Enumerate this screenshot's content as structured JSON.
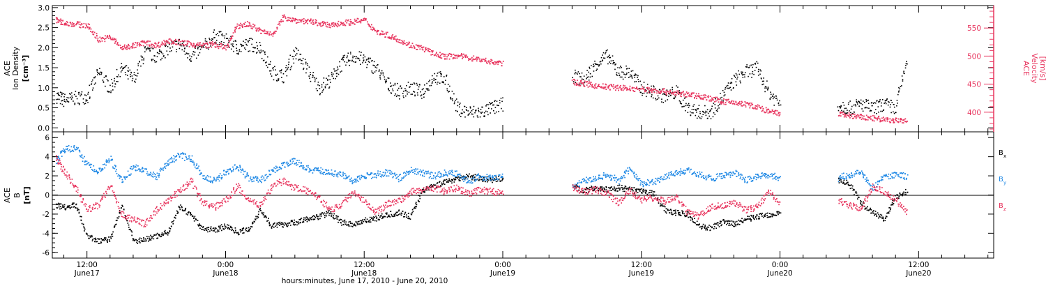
{
  "chart_data": [
    {
      "type": "scatter",
      "panel": "density_velocity",
      "left_axis": {
        "label_lines": [
          "ACE",
          "Ion Density",
          "[cm⁻³]"
        ],
        "ticks": [
          "0.0",
          "0.5",
          "1.0",
          "1.5",
          "2.0",
          "2.5",
          "3.0"
        ],
        "range": [
          -0.1,
          3.05
        ]
      },
      "right_axis": {
        "label_lines": [
          "ACE",
          "Velocity",
          "[km/s]"
        ],
        "ticks": [
          "400",
          "450",
          "500",
          "550"
        ],
        "range": [
          365,
          590
        ],
        "color": "#e8365f"
      },
      "series": [
        {
          "quantity": "density",
          "color": "#000000",
          "x": [
            9.3,
            10,
            11,
            12,
            13,
            14,
            15,
            16,
            17,
            18,
            19,
            20,
            21,
            22,
            23,
            24,
            25,
            26,
            27,
            28,
            29,
            30,
            31,
            32,
            33,
            34,
            35,
            36,
            37,
            38,
            39,
            40,
            41,
            42,
            43,
            44,
            45,
            46,
            47,
            48,
            54,
            55,
            56,
            57,
            58,
            59,
            60,
            61,
            62,
            63,
            64,
            65,
            66,
            67,
            68,
            69,
            70,
            71,
            72,
            77,
            78,
            79,
            80,
            81,
            82,
            83
          ],
          "y": [
            0.8,
            0.7,
            0.75,
            0.8,
            1.4,
            1.0,
            1.5,
            1.2,
            1.9,
            1.8,
            2.0,
            2.1,
            1.8,
            2.0,
            2.3,
            2.2,
            2.0,
            2.1,
            2.0,
            1.4,
            1.3,
            1.9,
            1.5,
            1.0,
            1.2,
            1.6,
            1.8,
            1.7,
            1.5,
            1.1,
            0.9,
            1.0,
            0.9,
            1.3,
            1.2,
            0.5,
            0.4,
            0.4,
            0.5,
            0.6,
            1.3,
            1.2,
            1.6,
            1.8,
            1.4,
            1.4,
            1.0,
            0.9,
            0.8,
            0.9,
            0.5,
            0.4,
            0.4,
            0.8,
            1.2,
            1.4,
            1.5,
            0.9,
            0.6,
            0.6,
            0.5,
            0.6,
            0.5,
            0.6,
            0.5,
            1.8
          ]
        },
        {
          "quantity": "velocity",
          "color": "#e8365f",
          "x": [
            9.3,
            10,
            11,
            12,
            13,
            14,
            15,
            16,
            17,
            18,
            19,
            20,
            21,
            22,
            23,
            24,
            25,
            26,
            27,
            28,
            29,
            30,
            31,
            32,
            33,
            34,
            35,
            36,
            37,
            38,
            39,
            40,
            41,
            42,
            43,
            44,
            45,
            46,
            47,
            48,
            54,
            55,
            56,
            57,
            58,
            59,
            60,
            61,
            62,
            63,
            64,
            65,
            66,
            67,
            68,
            69,
            70,
            71,
            72,
            77,
            78,
            79,
            80,
            81,
            82,
            83
          ],
          "y": [
            565,
            560,
            558,
            555,
            530,
            535,
            515,
            520,
            525,
            520,
            528,
            525,
            522,
            520,
            522,
            515,
            555,
            558,
            545,
            540,
            570,
            565,
            563,
            560,
            555,
            560,
            562,
            565,
            545,
            538,
            530,
            520,
            515,
            505,
            500,
            502,
            498,
            495,
            490,
            488,
            455,
            452,
            448,
            446,
            445,
            443,
            442,
            440,
            438,
            435,
            432,
            430,
            425,
            420,
            418,
            415,
            410,
            402,
            398,
            398,
            395,
            392,
            390,
            388,
            386,
            385
          ]
        }
      ]
    },
    {
      "type": "scatter",
      "panel": "magnetic_field",
      "left_axis": {
        "label_lines": [
          "ACE",
          "B",
          "[nT]"
        ],
        "ticks": [
          "-6",
          "-4",
          "-2",
          "0",
          "2",
          "4",
          "6"
        ],
        "range": [
          -6.6,
          6.6
        ]
      },
      "zero_line": true,
      "legend": [
        "B",
        "B",
        "B"
      ],
      "legend_subscripts": [
        "x",
        "y",
        "z"
      ],
      "series": [
        {
          "quantity": "Bx",
          "color": "#000000",
          "x": [
            9.3,
            10,
            11,
            12,
            13,
            14,
            15,
            16,
            17,
            18,
            19,
            20,
            21,
            22,
            23,
            24,
            25,
            26,
            27,
            28,
            29,
            30,
            31,
            32,
            33,
            34,
            35,
            36,
            37,
            38,
            39,
            40,
            41,
            42,
            43,
            44,
            45,
            46,
            47,
            48,
            54,
            55,
            56,
            57,
            58,
            59,
            60,
            61,
            62,
            63,
            64,
            65,
            66,
            67,
            68,
            69,
            70,
            71,
            72,
            77,
            78,
            79,
            80,
            81,
            82,
            83
          ],
          "y": [
            -1.0,
            -1.2,
            -1.0,
            -4.2,
            -4.8,
            -4.5,
            -1.0,
            -4.8,
            -4.6,
            -4.2,
            -3.8,
            -1.2,
            -2.0,
            -3.5,
            -3.6,
            -3.2,
            -3.8,
            -3.5,
            -1.5,
            -3.2,
            -3.0,
            -2.8,
            -2.5,
            -2.2,
            -1.8,
            -2.8,
            -3.0,
            -2.6,
            -2.4,
            -2.0,
            -1.8,
            -2.2,
            0.5,
            1.0,
            1.4,
            1.8,
            2.0,
            1.8,
            1.6,
            1.8,
            1.0,
            0.5,
            0.8,
            0.6,
            0.8,
            0.6,
            0.4,
            0.2,
            -1.5,
            -1.8,
            -2.0,
            -3.2,
            -3.4,
            -2.8,
            -3.0,
            -2.5,
            -2.2,
            -2.0,
            -1.8,
            1.6,
            1.2,
            -0.8,
            -1.8,
            -2.4,
            -0.2,
            0.5
          ]
        },
        {
          "quantity": "By",
          "color": "#1e88e5",
          "x": [
            9.3,
            10,
            11,
            12,
            13,
            14,
            15,
            16,
            17,
            18,
            19,
            20,
            21,
            22,
            23,
            24,
            25,
            26,
            27,
            28,
            29,
            30,
            31,
            32,
            33,
            34,
            35,
            36,
            37,
            38,
            39,
            40,
            41,
            42,
            43,
            44,
            45,
            46,
            47,
            48,
            54,
            55,
            56,
            57,
            58,
            59,
            60,
            61,
            62,
            63,
            64,
            65,
            66,
            67,
            68,
            69,
            70,
            71,
            72,
            77,
            78,
            79,
            80,
            81,
            82,
            83
          ],
          "y": [
            3.5,
            4.8,
            5.0,
            3.2,
            2.5,
            3.8,
            1.5,
            3.0,
            2.5,
            2.0,
            3.5,
            4.2,
            3.8,
            2.0,
            1.5,
            2.5,
            3.0,
            1.8,
            1.6,
            2.6,
            3.2,
            3.6,
            2.8,
            2.6,
            2.4,
            2.2,
            1.5,
            2.0,
            2.2,
            2.4,
            1.8,
            2.6,
            2.4,
            2.0,
            2.4,
            2.2,
            1.5,
            2.0,
            1.8,
            2.0,
            0.8,
            1.6,
            1.8,
            2.2,
            1.5,
            2.8,
            1.2,
            1.4,
            2.0,
            2.4,
            2.6,
            2.2,
            1.8,
            2.0,
            2.4,
            1.6,
            2.0,
            2.2,
            1.8,
            1.8,
            2.2,
            2.4,
            0.8,
            2.0,
            2.2,
            2.0
          ]
        },
        {
          "quantity": "Bz",
          "color": "#e8365f",
          "x": [
            9.3,
            10,
            11,
            12,
            13,
            14,
            15,
            16,
            17,
            18,
            19,
            20,
            21,
            22,
            23,
            24,
            25,
            26,
            27,
            28,
            29,
            30,
            31,
            32,
            33,
            34,
            35,
            36,
            37,
            38,
            39,
            40,
            41,
            42,
            43,
            44,
            45,
            46,
            47,
            48,
            54,
            55,
            56,
            57,
            58,
            59,
            60,
            61,
            62,
            63,
            64,
            65,
            66,
            67,
            68,
            69,
            70,
            71,
            72,
            77,
            78,
            79,
            80,
            81,
            82,
            83
          ],
          "y": [
            4.0,
            2.5,
            0.8,
            -1.5,
            -1.0,
            1.2,
            -2.0,
            -2.5,
            -3.0,
            -1.5,
            -0.5,
            0.5,
            1.5,
            -0.8,
            -1.2,
            -0.5,
            1.0,
            -0.6,
            -1.0,
            1.0,
            1.5,
            0.8,
            0.5,
            -0.2,
            -1.5,
            -1.0,
            0.4,
            -0.5,
            -1.8,
            -0.8,
            -0.6,
            0.4,
            0.6,
            0.8,
            0.4,
            0.8,
            0.2,
            0.6,
            0.4,
            0.3,
            0.8,
            0.4,
            0.6,
            0.2,
            -0.8,
            0.5,
            -0.5,
            -0.2,
            -0.6,
            -0.2,
            -1.8,
            -2.2,
            -1.2,
            -1.0,
            -0.8,
            -1.5,
            -1.2,
            0.4,
            -0.8,
            -0.5,
            -1.0,
            -1.4,
            1.0,
            0.4,
            -0.5,
            -1.8
          ]
        }
      ]
    }
  ],
  "time_axis": {
    "note": "x values are hours after 00:00 June 17, 2010",
    "range": [
      9.0,
      90.5
    ],
    "major_ticks_hours": [
      12,
      24,
      36,
      48,
      60,
      72,
      84
    ],
    "time_labels": [
      "12:00",
      "0:00",
      "12:00",
      "0:00",
      "12:00",
      "0:00",
      "12:00"
    ],
    "date_labels": [
      "June17",
      "June18",
      "June18",
      "June19",
      "June19",
      "June20",
      "June20"
    ],
    "caption": "hours:minutes, June 17, 2010 - June 20, 2010"
  }
}
